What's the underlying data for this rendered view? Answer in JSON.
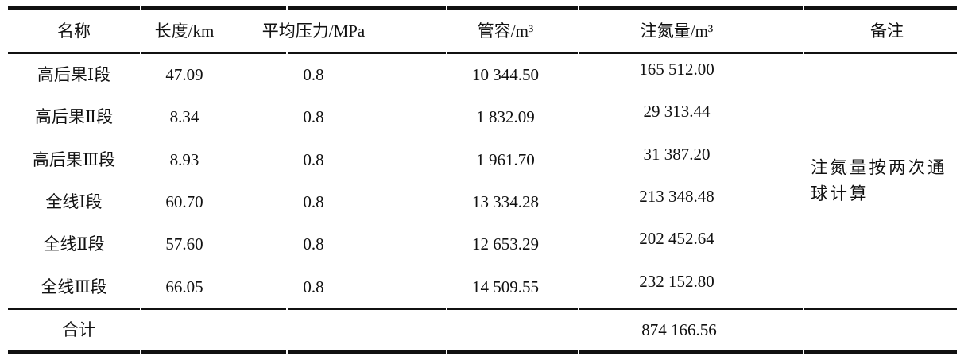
{
  "table": {
    "columns": [
      "名称",
      "长度/km",
      "平均压力/MPa",
      "管容/m³",
      "注氮量/m³",
      "备注"
    ],
    "rows": [
      {
        "name": "高后果Ⅰ段",
        "length": "47.09",
        "pressure": "0.8",
        "volume": "10 344.50",
        "nitrogen": "165 512.00"
      },
      {
        "name": "高后果Ⅱ段",
        "length": "8.34",
        "pressure": "0.8",
        "volume": "1 832.09",
        "nitrogen": "29 313.44"
      },
      {
        "name": "高后果Ⅲ段",
        "length": "8.93",
        "pressure": "0.8",
        "volume": "1 961.70",
        "nitrogen": "31 387.20"
      },
      {
        "name": "全线Ⅰ段",
        "length": "60.70",
        "pressure": "0.8",
        "volume": "13 334.28",
        "nitrogen": "213 348.48"
      },
      {
        "name": "全线Ⅱ段",
        "length": "57.60",
        "pressure": "0.8",
        "volume": "12 653.29",
        "nitrogen": "202 452.64"
      },
      {
        "name": "全线Ⅲ段",
        "length": "66.05",
        "pressure": "0.8",
        "volume": "14 509.55",
        "nitrogen": "232 152.80"
      }
    ],
    "remark": "注氮量按两次通球计算",
    "total": {
      "label": "合计",
      "nitrogen": "874 166.56"
    },
    "line_color": "#111111"
  }
}
